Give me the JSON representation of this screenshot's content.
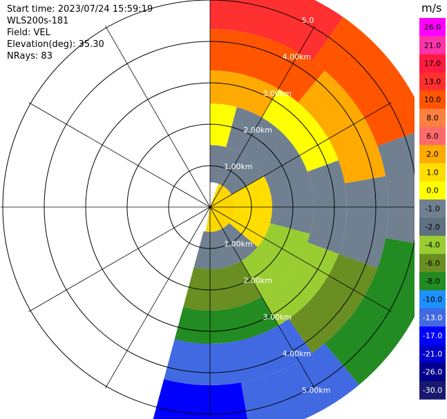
{
  "header": {
    "start_time": "Start time: 2023/07/24 15:59:19",
    "instrument": "WLS200s-181",
    "field": "Field: VEL",
    "elevation": "Elevation(deg): 35.30",
    "nrays": "NRays: 83"
  },
  "chart_data": {
    "type": "heatmap",
    "projection": "polar-ppi",
    "field": "VEL",
    "units": "m/s",
    "range_rings_km": [
      1,
      2,
      3,
      4,
      5
    ],
    "range_labels_lower": [
      "1.00km",
      "2.00km",
      "3.00km",
      "4.00km",
      "5.00km"
    ],
    "range_labels_upper": [
      "1.00km",
      "2.00km",
      "3.00km",
      "4.00km",
      "5.0"
    ],
    "max_range_km": 5.6,
    "azimuth_coverage_deg": [
      0,
      195
    ],
    "spoke_interval_deg": 30,
    "colorbar": {
      "tick_labels": [
        "26.0",
        "21.0",
        "17.0",
        "13.0",
        "10.0",
        "8.0",
        "6.0",
        "2.0",
        "1.0",
        "0.0",
        "-1.0",
        "-2.0",
        "-4.0",
        "-6.0",
        "-8.0",
        "-10.0",
        "-13.0",
        "-17.0",
        "-21.0",
        "-26.0",
        "-30.0"
      ],
      "colors": [
        "#ff00ff",
        "#ff33aa",
        "#ff1a40",
        "#ff3030",
        "#ff5500",
        "#ff8040",
        "#ff6a6a",
        "#ffaa00",
        "#ffdd00",
        "#ffff00",
        "#708090",
        "#5f7080",
        "#9acd32",
        "#6b8e23",
        "#228b22",
        "#1e90ff",
        "#4169e1",
        "#0000ff",
        "#0000cd",
        "#00008b",
        "#191970"
      ]
    },
    "sectors": [
      {
        "r0": 0.0,
        "r1": 0.6,
        "az0": 20,
        "az1": 190,
        "color": "#ffd700"
      },
      {
        "r0": 0.6,
        "r1": 1.5,
        "az0": 0,
        "az1": 60,
        "color": "#708090"
      },
      {
        "r0": 0.6,
        "r1": 1.5,
        "az0": 60,
        "az1": 130,
        "color": "#ffdd00"
      },
      {
        "r0": 0.6,
        "r1": 1.5,
        "az0": 130,
        "az1": 195,
        "color": "#708090"
      },
      {
        "r0": 1.5,
        "r1": 2.5,
        "az0": 0,
        "az1": 15,
        "color": "#ffff00"
      },
      {
        "r0": 1.5,
        "r1": 2.5,
        "az0": 15,
        "az1": 105,
        "color": "#708090"
      },
      {
        "r0": 1.5,
        "r1": 2.5,
        "az0": 105,
        "az1": 150,
        "color": "#9acd32"
      },
      {
        "r0": 1.5,
        "r1": 2.5,
        "az0": 150,
        "az1": 195,
        "color": "#6b8e23"
      },
      {
        "r0": 2.5,
        "r1": 3.3,
        "az0": 0,
        "az1": 30,
        "color": "#ffaa00"
      },
      {
        "r0": 2.5,
        "r1": 3.3,
        "az0": 30,
        "az1": 70,
        "color": "#ffff00"
      },
      {
        "r0": 2.5,
        "r1": 3.3,
        "az0": 70,
        "az1": 110,
        "color": "#708090"
      },
      {
        "r0": 2.5,
        "r1": 3.3,
        "az0": 110,
        "az1": 150,
        "color": "#9acd32"
      },
      {
        "r0": 2.5,
        "r1": 3.3,
        "az0": 150,
        "az1": 195,
        "color": "#228b22"
      },
      {
        "r0": 3.3,
        "r1": 4.3,
        "az0": 0,
        "az1": 40,
        "color": "#ff5500"
      },
      {
        "r0": 3.3,
        "r1": 4.3,
        "az0": 40,
        "az1": 80,
        "color": "#ffaa00"
      },
      {
        "r0": 3.3,
        "r1": 4.3,
        "az0": 80,
        "az1": 110,
        "color": "#708090"
      },
      {
        "r0": 3.3,
        "r1": 4.3,
        "az0": 110,
        "az1": 145,
        "color": "#6b8e23"
      },
      {
        "r0": 3.3,
        "r1": 4.3,
        "az0": 145,
        "az1": 195,
        "color": "#4169e1"
      },
      {
        "r0": 4.3,
        "r1": 5.6,
        "az0": 0,
        "az1": 35,
        "color": "#ff3030"
      },
      {
        "r0": 4.3,
        "r1": 5.6,
        "az0": 35,
        "az1": 70,
        "color": "#ff5500"
      },
      {
        "r0": 4.3,
        "r1": 5.6,
        "az0": 70,
        "az1": 100,
        "color": "#708090"
      },
      {
        "r0": 4.3,
        "r1": 5.6,
        "az0": 100,
        "az1": 140,
        "color": "#228b22"
      },
      {
        "r0": 4.3,
        "r1": 5.6,
        "az0": 140,
        "az1": 170,
        "color": "#4169e1"
      },
      {
        "r0": 4.3,
        "r1": 5.6,
        "az0": 170,
        "az1": 195,
        "color": "#0000ff"
      }
    ]
  }
}
